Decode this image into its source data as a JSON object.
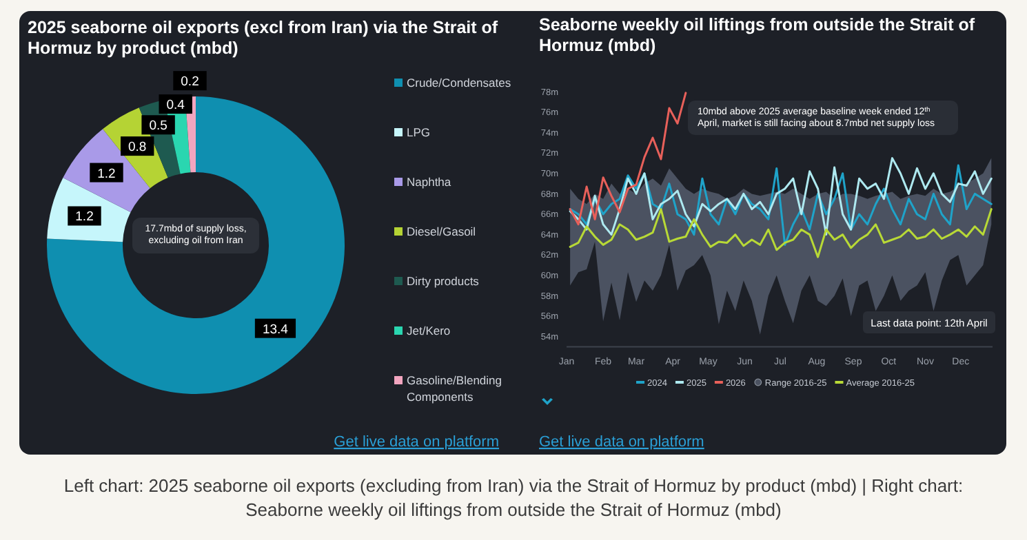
{
  "chart_data": [
    {
      "type": "donut",
      "title": "2025 seaborne oil exports (excl from Iran) via the Strait of Hormuz by product (mbd)",
      "categories": [
        "Crude/Condensates",
        "LPG",
        "Naphtha",
        "Diesel/Gasoil",
        "Dirty products",
        "Jet/Kero",
        "Gasoline/Blending Components"
      ],
      "values": [
        13.4,
        1.2,
        1.2,
        0.8,
        0.5,
        0.4,
        0.2
      ],
      "colors": [
        "#0f8fb0",
        "#c6f6fb",
        "#a99ae8",
        "#b5d334",
        "#1e5a50",
        "#2ad6b0",
        "#f2a5bf"
      ],
      "data_labels": true,
      "legend": "right",
      "annotations": [
        "17.7mbd of supply loss, excluding oil from Iran",
        "Get live data on platform"
      ]
    },
    {
      "type": "line",
      "title": "Seaborne weekly oil liftings from outside the Strait of Hormuz (mbd)",
      "x": [
        "--01-04",
        "--01-11",
        "--01-18",
        "--01-25",
        "--02-01",
        "--02-08",
        "--02-15",
        "--02-22",
        "--03-01",
        "--03-08",
        "--03-15",
        "--03-22",
        "--03-29",
        "--04-05",
        "--04-12",
        "--04-19",
        "--04-26",
        "--05-03",
        "--05-10",
        "--05-17",
        "--05-24",
        "--05-31",
        "--06-07",
        "--06-14",
        "--06-21",
        "--06-28",
        "--07-05",
        "--07-12",
        "--07-19",
        "--07-26",
        "--08-02",
        "--08-09",
        "--08-16",
        "--08-23",
        "--08-30",
        "--09-06",
        "--09-13",
        "--09-20",
        "--09-27",
        "--10-04",
        "--10-11",
        "--10-18",
        "--10-25",
        "--11-01",
        "--11-08",
        "--11-15",
        "--11-22",
        "--11-29",
        "--12-06",
        "--12-13",
        "--12-20",
        "--12-27"
      ],
      "xlim": [
        "--01-01",
        "--12-28"
      ],
      "xticks": [
        {
          "value": "--01-01",
          "label": "Jan"
        },
        {
          "value": "--02-01",
          "label": "Feb"
        },
        {
          "value": "--03-01",
          "label": "Mar"
        },
        {
          "value": "--04-01",
          "label": "Apr"
        },
        {
          "value": "--05-01",
          "label": "May"
        },
        {
          "value": "--06-01",
          "label": "Jun"
        },
        {
          "value": "--07-01",
          "label": "Jul"
        },
        {
          "value": "--08-01",
          "label": "Aug"
        },
        {
          "value": "--09-01",
          "label": "Sep"
        },
        {
          "value": "--10-01",
          "label": "Oct"
        },
        {
          "value": "--11-01",
          "label": "Nov"
        },
        {
          "value": "--12-01",
          "label": "Dec"
        }
      ],
      "ylim": [
        53,
        78
      ],
      "yticks": [
        {
          "value": 54,
          "label": "54m"
        },
        {
          "value": 56,
          "label": "56m"
        },
        {
          "value": 58,
          "label": "58m"
        },
        {
          "value": 60,
          "label": "60m"
        },
        {
          "value": 62,
          "label": "62m"
        },
        {
          "value": 64,
          "label": "64m"
        },
        {
          "value": 66,
          "label": "66m"
        },
        {
          "value": 68,
          "label": "68m"
        },
        {
          "value": 70,
          "label": "70m"
        },
        {
          "value": 72,
          "label": "72m"
        },
        {
          "value": 74,
          "label": "74m"
        },
        {
          "value": 76,
          "label": "76m"
        },
        {
          "value": 78,
          "label": "78m"
        }
      ],
      "legend": "bottom",
      "series": [
        {
          "name": "2024",
          "color": "#1fa3c9",
          "values": [
            66.5,
            66,
            65,
            67.5,
            66,
            67,
            67.5,
            69.8,
            68.5,
            70,
            67,
            66.5,
            69,
            66,
            65.5,
            64,
            69.5,
            66,
            65,
            67.5,
            66,
            68,
            67,
            66.5,
            65.5,
            70.5,
            63,
            65,
            66.5,
            64.5,
            68,
            66,
            67.5,
            70,
            64.5,
            66,
            65,
            67,
            68.5,
            66.5,
            65,
            67.5,
            66,
            65.5,
            68,
            66,
            65,
            70.8,
            66.5,
            68,
            67.5,
            67
          ]
        },
        {
          "name": "2025",
          "color": "#aee9f0",
          "values": [
            66.3,
            65.5,
            64.5,
            67.8,
            65,
            64,
            66.5,
            69.5,
            68,
            70,
            65.5,
            67,
            67.5,
            68.3,
            66,
            64.8,
            67,
            66.3,
            67,
            67.5,
            66.5,
            68,
            66.5,
            67.2,
            66,
            68,
            68.5,
            69.5,
            66,
            70.2,
            68.5,
            64,
            70.6,
            66,
            64.5,
            69.5,
            68.5,
            69,
            67.5,
            71.5,
            70,
            68,
            70.5,
            68.5,
            70,
            68,
            67.2,
            69,
            68.8,
            70.2,
            68,
            69.5
          ]
        },
        {
          "name": "2026",
          "color": "#e8605a",
          "values": [
            66.5,
            65,
            68.7,
            65.5,
            69.6,
            67.8,
            66.2,
            68.5,
            68.9,
            71.6,
            73.5,
            71.4,
            76.4,
            74.9,
            77.9,
            null,
            null,
            null,
            null,
            null,
            null,
            null,
            null,
            null,
            null,
            null,
            null,
            null,
            null,
            null,
            null,
            null,
            null,
            null,
            null,
            null,
            null,
            null,
            null,
            null,
            null,
            null,
            null,
            null,
            null,
            null,
            null,
            null,
            null,
            null,
            null,
            null
          ]
        },
        {
          "name": "Range 2016-25",
          "type": "area",
          "color": "#4b5261",
          "values": [
            null,
            null,
            null,
            null,
            null,
            null,
            null,
            null,
            null,
            null,
            null,
            null,
            null,
            null,
            null,
            null,
            null,
            null,
            null,
            null,
            null,
            null,
            null,
            null,
            null,
            null,
            null,
            null,
            null,
            null,
            null,
            null,
            null,
            null,
            null,
            null,
            null,
            null,
            null,
            null,
            null,
            null,
            null,
            null,
            null,
            null,
            null,
            null,
            null,
            null,
            null,
            null
          ],
          "upper": [
            68.5,
            67.5,
            67,
            68,
            67.5,
            69,
            68,
            68.5,
            68,
            69,
            69.5,
            68.8,
            70.5,
            69.5,
            68.5,
            68,
            68.5,
            68.2,
            68,
            67.5,
            67.8,
            68.5,
            68,
            67.8,
            68,
            68.2,
            68,
            68.5,
            68,
            67.5,
            68,
            68.2,
            67.5,
            68,
            68,
            67.8,
            67.5,
            67.8,
            68,
            68.2,
            67.5,
            67.8,
            68,
            67.8,
            68.5,
            68,
            68.2,
            68.7,
            69,
            69.5,
            70,
            71.5
          ],
          "lower": [
            59,
            60.3,
            60.6,
            63.3,
            55.5,
            59.3,
            55.6,
            60.3,
            57.4,
            59.5,
            58.5,
            60,
            63,
            58.5,
            60.5,
            61,
            62,
            60,
            55.2,
            58.5,
            56.5,
            59.5,
            57.5,
            54.2,
            58,
            60,
            57.5,
            55.3,
            58.5,
            60,
            57.5,
            57,
            58,
            59.7,
            56,
            59,
            59.5,
            56.5,
            58,
            60,
            57.5,
            58.5,
            59,
            60.3,
            56.5,
            59.5,
            61.5,
            62,
            59,
            60,
            61,
            65
          ]
        },
        {
          "name": "Average 2016-25",
          "color": "#b8d936",
          "values": [
            62.8,
            63.2,
            64.8,
            63.8,
            63,
            63.5,
            65,
            64.5,
            63.5,
            63.8,
            64.2,
            66.5,
            63.3,
            63.6,
            63.8,
            65.5,
            64,
            62.8,
            63.3,
            63.2,
            64,
            62.9,
            63.5,
            63,
            64.5,
            62.5,
            63.2,
            63.5,
            64.5,
            64,
            61.8,
            64.5,
            63.5,
            64,
            62.7,
            63.5,
            64,
            65,
            63.2,
            63.5,
            63.8,
            64.5,
            63.6,
            63.8,
            64.5,
            63.6,
            64,
            64.5,
            63.8,
            64.8,
            64,
            66.5
          ]
        }
      ],
      "annotations": [
        "10mbd above 2025 average baseline week ended 12$^{th}$ April, market is still facing about 8.7mbd net supply loss",
        "Last data point: 12th April",
        "Get live data on platform",
        "Left chart: 2025 seaborne oil exports (excluding from Iran) via the Strait of Hormuz by product (mbd) | Right chart: Seaborne weekly oil liftings from outside the Strait of Hormuz (mbd)"
      ]
    }
  ]
}
